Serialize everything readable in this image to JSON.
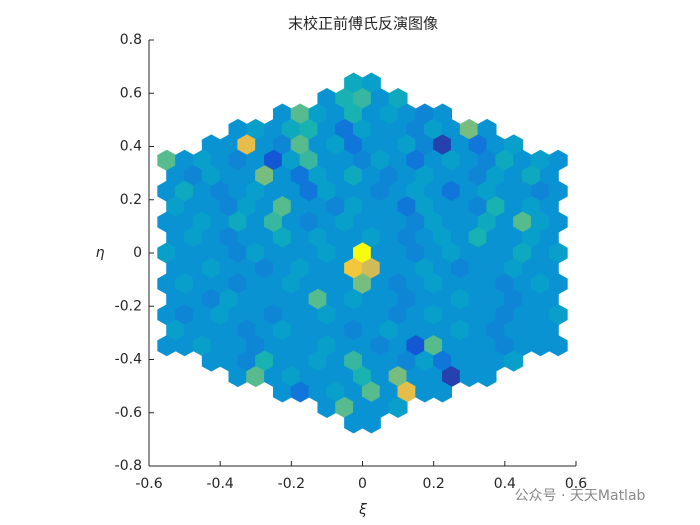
{
  "chart_data": {
    "type": "hexbin",
    "title": "末校正前傅氏反演图像",
    "xlabel": "ξ",
    "ylabel": "η",
    "xlim": [
      -0.6,
      0.6
    ],
    "xticks": [
      -0.6,
      -0.4,
      -0.2,
      0,
      0.2,
      0.4,
      0.6
    ],
    "ylim": [
      -0.8,
      0.8
    ],
    "yticks": [
      -0.8,
      -0.6,
      -0.4,
      -0.2,
      0,
      0.2,
      0.4,
      0.6,
      0.8
    ],
    "colormap": "parula",
    "clim": [
      0,
      1
    ],
    "bin_width": 0.05,
    "rows": [
      {
        "y": 0.638,
        "x0": -0.025,
        "values": [
          0.4,
          0.35
        ]
      },
      {
        "y": 0.58,
        "x0": -0.1,
        "values": [
          0.3,
          0.45,
          0.5,
          0.3,
          0.4
        ]
      },
      {
        "y": 0.522,
        "x0": -0.225,
        "values": [
          0.3,
          0.55,
          0.35,
          0.3,
          0.45,
          0.3,
          0.35,
          0.3,
          0.25,
          0.3
        ]
      },
      {
        "y": 0.464,
        "x0": -0.35,
        "values": [
          0.3,
          0.35,
          0.3,
          0.4,
          0.45,
          0.3,
          0.2,
          0.35,
          0.3,
          0.3,
          0.25,
          0.35,
          0.3,
          0.6,
          0.3
        ]
      },
      {
        "y": 0.406,
        "x0": -0.425,
        "values": [
          0.3,
          0.3,
          0.8,
          0.3,
          0.25,
          0.55,
          0.3,
          0.35,
          0.2,
          0.3,
          0.3,
          0.35,
          0.25,
          0.05,
          0.3,
          0.2,
          0.3,
          0.35
        ]
      },
      {
        "y": 0.348,
        "x0": -0.55,
        "values": [
          0.55,
          0.3,
          0.35,
          0.3,
          0.25,
          0.3,
          0.1,
          0.35,
          0.5,
          0.3,
          0.3,
          0.25,
          0.35,
          0.3,
          0.2,
          0.3,
          0.35,
          0.3,
          0.25,
          0.4,
          0.3,
          0.35,
          0.3
        ]
      },
      {
        "y": 0.29,
        "x0": -0.525,
        "values": [
          0.3,
          0.25,
          0.35,
          0.3,
          0.3,
          0.6,
          0.3,
          0.2,
          0.35,
          0.3,
          0.4,
          0.3,
          0.25,
          0.3,
          0.35,
          0.3,
          0.3,
          0.25,
          0.35,
          0.3,
          0.4,
          0.3
        ]
      },
      {
        "y": 0.232,
        "x0": -0.55,
        "values": [
          0.3,
          0.4,
          0.3,
          0.25,
          0.3,
          0.35,
          0.3,
          0.3,
          0.2,
          0.35,
          0.3,
          0.3,
          0.25,
          0.3,
          0.35,
          0.3,
          0.2,
          0.3,
          0.35,
          0.3,
          0.3,
          0.25,
          0.3
        ]
      },
      {
        "y": 0.174,
        "x0": -0.525,
        "values": [
          0.35,
          0.3,
          0.3,
          0.25,
          0.35,
          0.3,
          0.55,
          0.3,
          0.3,
          0.25,
          0.35,
          0.3,
          0.3,
          0.2,
          0.35,
          0.3,
          0.3,
          0.25,
          0.45,
          0.3,
          0.35,
          0.3
        ]
      },
      {
        "y": 0.116,
        "x0": -0.55,
        "values": [
          0.3,
          0.3,
          0.35,
          0.3,
          0.4,
          0.3,
          0.5,
          0.3,
          0.25,
          0.3,
          0.35,
          0.3,
          0.3,
          0.3,
          0.25,
          0.35,
          0.3,
          0.3,
          0.4,
          0.3,
          0.55,
          0.35,
          0.3
        ]
      },
      {
        "y": 0.058,
        "x0": -0.525,
        "values": [
          0.3,
          0.35,
          0.3,
          0.25,
          0.3,
          0.3,
          0.4,
          0.3,
          0.35,
          0.3,
          0.3,
          0.35,
          0.3,
          0.25,
          0.3,
          0.35,
          0.3,
          0.45,
          0.3,
          0.3,
          0.35,
          0.3
        ]
      },
      {
        "y": 0,
        "x0": -0.55,
        "values": [
          0.35,
          0.3,
          0.3,
          0.3,
          0.25,
          0.35,
          0.3,
          0.3,
          0.3,
          0.35,
          0.3,
          1.0,
          0.3,
          0.3,
          0.25,
          0.3,
          0.35,
          0.3,
          0.3,
          0.3,
          0.4,
          0.3,
          0.35
        ]
      },
      {
        "y": -0.058,
        "x0": -0.525,
        "values": [
          0.3,
          0.3,
          0.35,
          0.3,
          0.3,
          0.25,
          0.3,
          0.35,
          0.3,
          0.3,
          0.85,
          0.75,
          0.3,
          0.3,
          0.35,
          0.3,
          0.25,
          0.3,
          0.3,
          0.35,
          0.3,
          0.3
        ]
      },
      {
        "y": -0.116,
        "x0": -0.55,
        "values": [
          0.3,
          0.35,
          0.3,
          0.3,
          0.25,
          0.3,
          0.3,
          0.35,
          0.3,
          0.3,
          0.3,
          0.6,
          0.3,
          0.25,
          0.3,
          0.35,
          0.3,
          0.3,
          0.3,
          0.25,
          0.3,
          0.35,
          0.3
        ]
      },
      {
        "y": -0.174,
        "x0": -0.525,
        "values": [
          0.3,
          0.3,
          0.25,
          0.35,
          0.3,
          0.3,
          0.3,
          0.3,
          0.55,
          0.3,
          0.35,
          0.3,
          0.3,
          0.25,
          0.3,
          0.3,
          0.35,
          0.3,
          0.3,
          0.25,
          0.3,
          0.3
        ]
      },
      {
        "y": -0.232,
        "x0": -0.55,
        "values": [
          0.3,
          0.25,
          0.3,
          0.35,
          0.3,
          0.3,
          0.25,
          0.3,
          0.3,
          0.35,
          0.3,
          0.3,
          0.3,
          0.25,
          0.3,
          0.35,
          0.3,
          0.3,
          0.3,
          0.25,
          0.3,
          0.3,
          0.35
        ]
      },
      {
        "y": -0.29,
        "x0": -0.525,
        "values": [
          0.35,
          0.3,
          0.3,
          0.3,
          0.25,
          0.3,
          0.35,
          0.3,
          0.3,
          0.3,
          0.25,
          0.3,
          0.35,
          0.3,
          0.3,
          0.3,
          0.35,
          0.3,
          0.25,
          0.3,
          0.3,
          0.3
        ]
      },
      {
        "y": -0.348,
        "x0": -0.55,
        "values": [
          0.3,
          0.3,
          0.35,
          0.3,
          0.3,
          0.25,
          0.3,
          0.3,
          0.3,
          0.35,
          0.3,
          0.3,
          0.25,
          0.3,
          0.1,
          0.55,
          0.3,
          0.3,
          0.3,
          0.25,
          0.3,
          0.3,
          0.3
        ]
      },
      {
        "y": -0.406,
        "x0": -0.425,
        "values": [
          0.3,
          0.3,
          0.25,
          0.45,
          0.3,
          0.3,
          0.35,
          0.3,
          0.5,
          0.3,
          0.3,
          0.25,
          0.35,
          0.2,
          0.3,
          0.3,
          0.3,
          0.35
        ]
      },
      {
        "y": -0.464,
        "x0": -0.35,
        "values": [
          0.3,
          0.55,
          0.3,
          0.35,
          0.3,
          0.3,
          0.3,
          0.45,
          0.3,
          0.6,
          0.3,
          0.3,
          0.05,
          0.3,
          0.3
        ]
      },
      {
        "y": -0.522,
        "x0": -0.225,
        "values": [
          0.3,
          0.2,
          0.3,
          0.35,
          0.3,
          0.55,
          0.3,
          0.8,
          0.3,
          0.3
        ]
      },
      {
        "y": -0.58,
        "x0": -0.1,
        "values": [
          0.3,
          0.55,
          0.3,
          0.3,
          0.35
        ]
      },
      {
        "y": -0.638,
        "x0": -0.025,
        "values": [
          0.3,
          0.3
        ]
      }
    ]
  },
  "watermark": "公众号 · 天天Matlab"
}
